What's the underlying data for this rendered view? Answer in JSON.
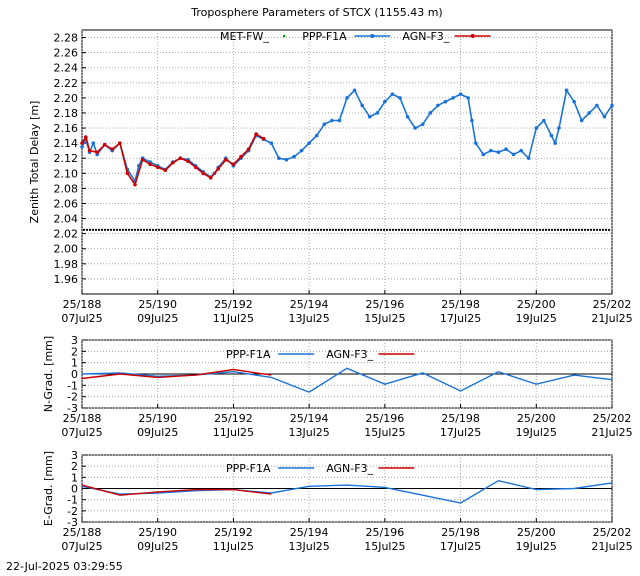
{
  "timestamp": "22-Jul-2025 03:29:55",
  "chart_data": [
    {
      "type": "line",
      "title": "Troposphere Parameters of STCX (1155.43 m)",
      "ylabel": "Zenith Total Delay [m]",
      "xlabel": "",
      "xlim": [
        188,
        202
      ],
      "ylim": [
        1.94,
        2.29
      ],
      "yticks": [
        1.96,
        1.98,
        2.0,
        2.02,
        2.04,
        2.06,
        2.08,
        2.1,
        2.12,
        2.14,
        2.16,
        2.18,
        2.2,
        2.22,
        2.24,
        2.26,
        2.28
      ],
      "ytick_labels": [
        "1.96",
        "1.98",
        "2.00",
        "2.02",
        "2.04",
        "2.06",
        "2.08",
        "2.10",
        "2.12",
        "2.14",
        "2.16",
        "2.18",
        "2.20",
        "2.22",
        "2.24",
        "2.26",
        "2.28"
      ],
      "xticks": [
        188,
        190,
        192,
        194,
        196,
        198,
        200,
        202
      ],
      "xtick_labels_top": [
        "25/188",
        "25/190",
        "25/192",
        "25/194",
        "25/196",
        "25/198",
        "25/200",
        "25/202"
      ],
      "xtick_labels_bottom": [
        "07Jul25",
        "09Jul25",
        "11Jul25",
        "13Jul25",
        "15Jul25",
        "17Jul25",
        "19Jul25",
        "21Jul25"
      ],
      "grid": true,
      "legend_position": "top",
      "series": [
        {
          "name": "MET-FW_",
          "color": "#00a000",
          "style": "dots",
          "x": [
            188.0,
            202.0
          ],
          "values": [
            2.025,
            2.025
          ]
        },
        {
          "name": "PPP-F1A",
          "color": "#1a73d9",
          "style": "line-points",
          "x": [
            188.0,
            188.1,
            188.2,
            188.3,
            188.4,
            188.6,
            188.8,
            189.0,
            189.2,
            189.4,
            189.5,
            189.6,
            189.8,
            190.0,
            190.2,
            190.4,
            190.6,
            190.8,
            191.0,
            191.2,
            191.4,
            191.5,
            191.6,
            191.8,
            192.0,
            192.2,
            192.4,
            192.6,
            192.8,
            193.0,
            193.2,
            193.4,
            193.6,
            193.8,
            194.0,
            194.2,
            194.4,
            194.6,
            194.8,
            195.0,
            195.2,
            195.4,
            195.6,
            195.8,
            196.0,
            196.2,
            196.4,
            196.6,
            196.8,
            197.0,
            197.2,
            197.4,
            197.6,
            197.8,
            198.0,
            198.2,
            198.3,
            198.4,
            198.6,
            198.8,
            199.0,
            199.2,
            199.4,
            199.6,
            199.8,
            200.0,
            200.2,
            200.4,
            200.5,
            200.6,
            200.8,
            201.0,
            201.2,
            201.4,
            201.6,
            201.8,
            202.0
          ],
          "values": [
            2.135,
            2.145,
            2.128,
            2.14,
            2.125,
            2.138,
            2.13,
            2.14,
            2.105,
            2.09,
            2.11,
            2.12,
            2.115,
            2.11,
            2.105,
            2.115,
            2.12,
            2.118,
            2.11,
            2.102,
            2.095,
            2.1,
            2.108,
            2.12,
            2.11,
            2.12,
            2.13,
            2.15,
            2.145,
            2.14,
            2.12,
            2.118,
            2.122,
            2.13,
            2.14,
            2.15,
            2.165,
            2.17,
            2.17,
            2.2,
            2.21,
            2.19,
            2.175,
            2.18,
            2.195,
            2.205,
            2.2,
            2.175,
            2.16,
            2.165,
            2.18,
            2.19,
            2.195,
            2.2,
            2.205,
            2.2,
            2.17,
            2.14,
            2.125,
            2.13,
            2.128,
            2.132,
            2.125,
            2.13,
            2.12,
            2.16,
            2.17,
            2.15,
            2.14,
            2.16,
            2.21,
            2.195,
            2.17,
            2.18,
            2.19,
            2.175,
            2.19
          ]
        },
        {
          "name": "AGN-F3_",
          "color": "#cc0000",
          "style": "line-markers",
          "x": [
            188.0,
            188.1,
            188.2,
            188.4,
            188.6,
            188.8,
            189.0,
            189.2,
            189.4,
            189.6,
            189.8,
            190.0,
            190.2,
            190.4,
            190.6,
            190.8,
            191.0,
            191.2,
            191.4,
            191.6,
            191.8,
            192.0,
            192.2,
            192.4,
            192.6,
            192.8
          ],
          "values": [
            2.14,
            2.148,
            2.13,
            2.128,
            2.138,
            2.132,
            2.14,
            2.1,
            2.085,
            2.118,
            2.112,
            2.108,
            2.104,
            2.114,
            2.12,
            2.116,
            2.108,
            2.1,
            2.094,
            2.106,
            2.118,
            2.112,
            2.122,
            2.132,
            2.152,
            2.146
          ]
        }
      ]
    },
    {
      "type": "line",
      "title": "",
      "ylabel": "N-Grad. [mm]",
      "xlim": [
        188,
        202
      ],
      "ylim": [
        -3,
        3
      ],
      "yticks": [
        -3,
        -2,
        -1,
        0,
        1,
        2,
        3
      ],
      "ytick_labels": [
        "-3",
        "-2",
        "-1",
        "0",
        "1",
        "2",
        "3"
      ],
      "xticks": [
        188,
        190,
        192,
        194,
        196,
        198,
        200,
        202
      ],
      "xtick_labels_top": [
        "25/188",
        "25/190",
        "25/192",
        "25/194",
        "25/196",
        "25/198",
        "25/200",
        "25/202"
      ],
      "xtick_labels_bottom": [
        "07Jul25",
        "09Jul25",
        "11Jul25",
        "13Jul25",
        "15Jul25",
        "17Jul25",
        "19Jul25",
        "21Jul25"
      ],
      "grid": true,
      "legend_position": "top",
      "series": [
        {
          "name": "PPP-F1A",
          "color": "#1a73d9",
          "x": [
            188,
            189,
            190,
            191,
            192,
            193,
            194,
            195,
            196,
            197,
            198,
            199,
            200,
            201,
            202
          ],
          "values": [
            0.0,
            0.1,
            -0.2,
            -0.1,
            0.2,
            -0.3,
            -1.6,
            0.5,
            -0.9,
            0.1,
            -1.5,
            0.2,
            -0.9,
            -0.1,
            -0.5
          ]
        },
        {
          "name": "AGN-F3_",
          "color": "#cc0000",
          "x": [
            188,
            189,
            190,
            191,
            192,
            193
          ],
          "values": [
            -0.4,
            0.0,
            -0.3,
            -0.1,
            0.4,
            -0.1
          ]
        }
      ]
    },
    {
      "type": "line",
      "title": "",
      "ylabel": "E-Grad. [mm]",
      "xlim": [
        188,
        202
      ],
      "ylim": [
        -3,
        3
      ],
      "yticks": [
        -3,
        -2,
        -1,
        0,
        1,
        2,
        3
      ],
      "ytick_labels": [
        "-3",
        "-2",
        "-1",
        "0",
        "1",
        "2",
        "3"
      ],
      "xticks": [
        188,
        190,
        192,
        194,
        196,
        198,
        200,
        202
      ],
      "xtick_labels_top": [
        "25/188",
        "25/190",
        "25/192",
        "25/194",
        "25/196",
        "25/198",
        "25/200",
        "25/202"
      ],
      "xtick_labels_bottom": [
        "07Jul25",
        "09Jul25",
        "11Jul25",
        "13Jul25",
        "15Jul25",
        "17Jul25",
        "19Jul25",
        "21Jul25"
      ],
      "grid": true,
      "legend_position": "top",
      "series": [
        {
          "name": "PPP-F1A",
          "color": "#1a73d9",
          "x": [
            188,
            189,
            190,
            191,
            192,
            193,
            194,
            195,
            196,
            197,
            198,
            199,
            200,
            201,
            202
          ],
          "values": [
            0.2,
            -0.5,
            -0.4,
            -0.2,
            -0.1,
            -0.4,
            0.2,
            0.3,
            0.1,
            -0.6,
            -1.3,
            0.7,
            -0.1,
            0.0,
            0.5
          ]
        },
        {
          "name": "AGN-F3_",
          "color": "#cc0000",
          "x": [
            188,
            189,
            190,
            191,
            192,
            193
          ],
          "values": [
            0.3,
            -0.6,
            -0.3,
            -0.1,
            -0.1,
            -0.5
          ]
        }
      ]
    }
  ]
}
